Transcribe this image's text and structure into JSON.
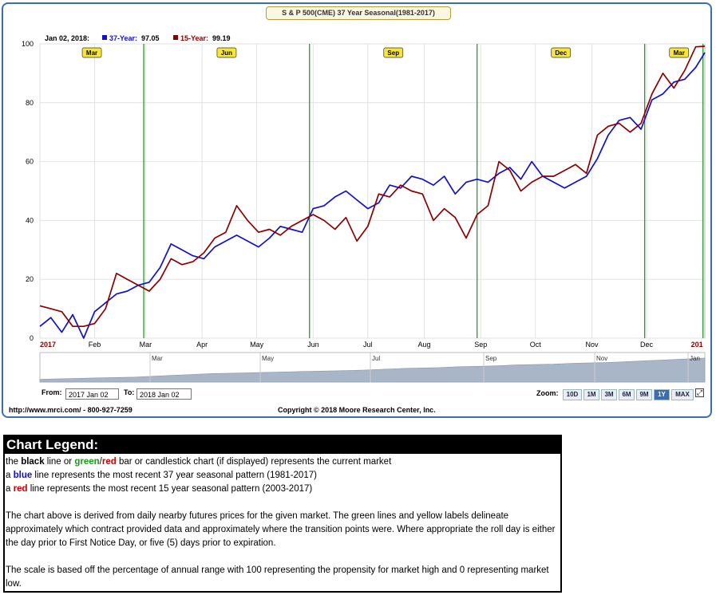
{
  "title": "S & P 500(CME) 37 Year Seasonal(1981-2017)",
  "readout": {
    "date": "Jan 02, 2018:",
    "s37_label": "37-Year:",
    "s37_value": "97.05",
    "s15_label": "15-Year:",
    "s15_value": "99.19"
  },
  "chart_data": {
    "type": "line",
    "title": "S & P 500(CME) 37 Year Seasonal(1981-2017)",
    "ylim": [
      0,
      100
    ],
    "yticks": [
      0,
      20,
      40,
      60,
      80,
      100
    ],
    "xlim": [
      "2017-01-02",
      "2018-01-02"
    ],
    "xticks": [
      {
        "label": "2017",
        "date": "2017-01-02"
      },
      {
        "label": "Feb",
        "date": "2017-02-01"
      },
      {
        "label": "Mar",
        "date": "2017-03-01"
      },
      {
        "label": "Apr",
        "date": "2017-04-01"
      },
      {
        "label": "May",
        "date": "2017-05-01"
      },
      {
        "label": "Jun",
        "date": "2017-06-01"
      },
      {
        "label": "Jul",
        "date": "2017-07-01"
      },
      {
        "label": "Aug",
        "date": "2017-08-01"
      },
      {
        "label": "Sep",
        "date": "2017-09-01"
      },
      {
        "label": "Oct",
        "date": "2017-10-01"
      },
      {
        "label": "Nov",
        "date": "2017-11-01"
      },
      {
        "label": "Dec",
        "date": "2017-12-01"
      },
      {
        "label": "201",
        "date": "2018-01-01"
      }
    ],
    "contract_transitions": [
      {
        "date": "2017-02-28",
        "label": "Mar"
      },
      {
        "date": "2017-05-30",
        "label": "Jun"
      },
      {
        "date": "2017-08-30",
        "label": "Sep"
      },
      {
        "date": "2017-11-30",
        "label": "Dec"
      },
      {
        "date": "2018-01-01",
        "label": "Mar"
      }
    ],
    "grid": true,
    "series": [
      {
        "name": "37-Year",
        "color": "#1111cc",
        "x": [
          "2017-01-02",
          "2017-01-08",
          "2017-01-14",
          "2017-01-20",
          "2017-01-26",
          "2017-02-01",
          "2017-02-07",
          "2017-02-13",
          "2017-02-19",
          "2017-02-25",
          "2017-03-03",
          "2017-03-09",
          "2017-03-15",
          "2017-03-21",
          "2017-03-27",
          "2017-04-02",
          "2017-04-08",
          "2017-04-14",
          "2017-04-20",
          "2017-04-26",
          "2017-05-02",
          "2017-05-08",
          "2017-05-14",
          "2017-05-20",
          "2017-05-26",
          "2017-06-01",
          "2017-06-07",
          "2017-06-13",
          "2017-06-19",
          "2017-06-25",
          "2017-07-01",
          "2017-07-07",
          "2017-07-13",
          "2017-07-19",
          "2017-07-25",
          "2017-07-31",
          "2017-08-06",
          "2017-08-12",
          "2017-08-18",
          "2017-08-24",
          "2017-08-30",
          "2017-09-05",
          "2017-09-11",
          "2017-09-17",
          "2017-09-23",
          "2017-09-29",
          "2017-10-05",
          "2017-10-11",
          "2017-10-17",
          "2017-10-23",
          "2017-10-29",
          "2017-11-04",
          "2017-11-10",
          "2017-11-16",
          "2017-11-22",
          "2017-11-28",
          "2017-12-04",
          "2017-12-10",
          "2017-12-16",
          "2017-12-22",
          "2017-12-28",
          "2018-01-02"
        ],
        "values": [
          4,
          7,
          2,
          8,
          0,
          9,
          12,
          15,
          16,
          18,
          19,
          24,
          32,
          30,
          28,
          27,
          31,
          33,
          35,
          33,
          31,
          34,
          38,
          37,
          36,
          44,
          45,
          48,
          50,
          47,
          44,
          46,
          52,
          51,
          55,
          54,
          52,
          55,
          49,
          53,
          54,
          53,
          56,
          58,
          54,
          60,
          55,
          53,
          51,
          53,
          55,
          61,
          69,
          74,
          75,
          71,
          81,
          83,
          87,
          88,
          92,
          97.05
        ]
      },
      {
        "name": "15-Year",
        "color": "#8b0000",
        "x": [
          "2017-01-02",
          "2017-01-08",
          "2017-01-14",
          "2017-01-20",
          "2017-01-26",
          "2017-02-01",
          "2017-02-07",
          "2017-02-13",
          "2017-02-19",
          "2017-02-25",
          "2017-03-03",
          "2017-03-09",
          "2017-03-15",
          "2017-03-21",
          "2017-03-27",
          "2017-04-02",
          "2017-04-08",
          "2017-04-14",
          "2017-04-20",
          "2017-04-26",
          "2017-05-02",
          "2017-05-08",
          "2017-05-14",
          "2017-05-20",
          "2017-05-26",
          "2017-06-01",
          "2017-06-07",
          "2017-06-13",
          "2017-06-19",
          "2017-06-25",
          "2017-07-01",
          "2017-07-07",
          "2017-07-13",
          "2017-07-19",
          "2017-07-25",
          "2017-07-31",
          "2017-08-06",
          "2017-08-12",
          "2017-08-18",
          "2017-08-24",
          "2017-08-30",
          "2017-09-05",
          "2017-09-11",
          "2017-09-17",
          "2017-09-23",
          "2017-09-29",
          "2017-10-05",
          "2017-10-11",
          "2017-10-17",
          "2017-10-23",
          "2017-10-29",
          "2017-11-04",
          "2017-11-10",
          "2017-11-16",
          "2017-11-22",
          "2017-11-28",
          "2017-12-04",
          "2017-12-10",
          "2017-12-16",
          "2017-12-22",
          "2017-12-28",
          "2018-01-02"
        ],
        "values": [
          11,
          10,
          9,
          4,
          4,
          5,
          10,
          22,
          20,
          18,
          16,
          20,
          27,
          25,
          26,
          29,
          34,
          36,
          45,
          40,
          36,
          37,
          35,
          38,
          40,
          42,
          40,
          37,
          41,
          33,
          38,
          49,
          48,
          52,
          50,
          49,
          40,
          44,
          41,
          34,
          42,
          45,
          60,
          57,
          50,
          53,
          55,
          55,
          57,
          59,
          56,
          69,
          72,
          73,
          70,
          73,
          83,
          90,
          85,
          91,
          99,
          99.19
        ]
      }
    ]
  },
  "navigator": {
    "labels": [
      "Mar",
      "May",
      "Jul",
      "Sep",
      "Nov",
      "Jan"
    ],
    "values": [
      1,
      2,
      3,
      4,
      5,
      6,
      8,
      10,
      12,
      14,
      15,
      16,
      17,
      18,
      19,
      20,
      21,
      22,
      24,
      26,
      27,
      28,
      30,
      31,
      32,
      34,
      35,
      36,
      38,
      39,
      40,
      42,
      44,
      46,
      48,
      50
    ]
  },
  "controls": {
    "from_label": "From:",
    "from_value": "2017 Jan 02",
    "to_label": "To:",
    "to_value": "2018 Jan 02",
    "zoom_label": "Zoom:",
    "zoom_buttons": [
      "10D",
      "1M",
      "3M",
      "6M",
      "9M",
      "1Y",
      "MAX"
    ],
    "zoom_active": "1Y"
  },
  "footer": {
    "url": "http://www.mrci.com/ - 800-927-7259",
    "copyright": "Copyright © 2018 Moore Research Center, Inc."
  },
  "legend": {
    "heading": "Chart Legend:",
    "line1": {
      "pre": "the ",
      "black": "black",
      "mid1": " line or ",
      "green": "green",
      "slash": "/",
      "red": "red",
      "post": " bar or candlestick chart (if displayed) represents the current market"
    },
    "line2": {
      "pre": "a ",
      "word": "blue",
      "post": " line represents the most recent 37 year seasonal pattern (1981-2017)"
    },
    "line3": {
      "pre": "a ",
      "word": "red",
      "post": " line represents the most recent 15 year seasonal pattern (2003-2017)"
    },
    "para1": "The chart above is derived from daily nearby futures prices for the given market. The green lines and yellow labels delineate approximately which contract provided data and approximately where the transition points were. Where appropriate the roll day is either the day prior to First Notice Day, or five (5) days prior to expiration.",
    "para2": "The scale is based off the percentage of annual range with 100 representing the propensity for market high and 0 representing market low."
  }
}
